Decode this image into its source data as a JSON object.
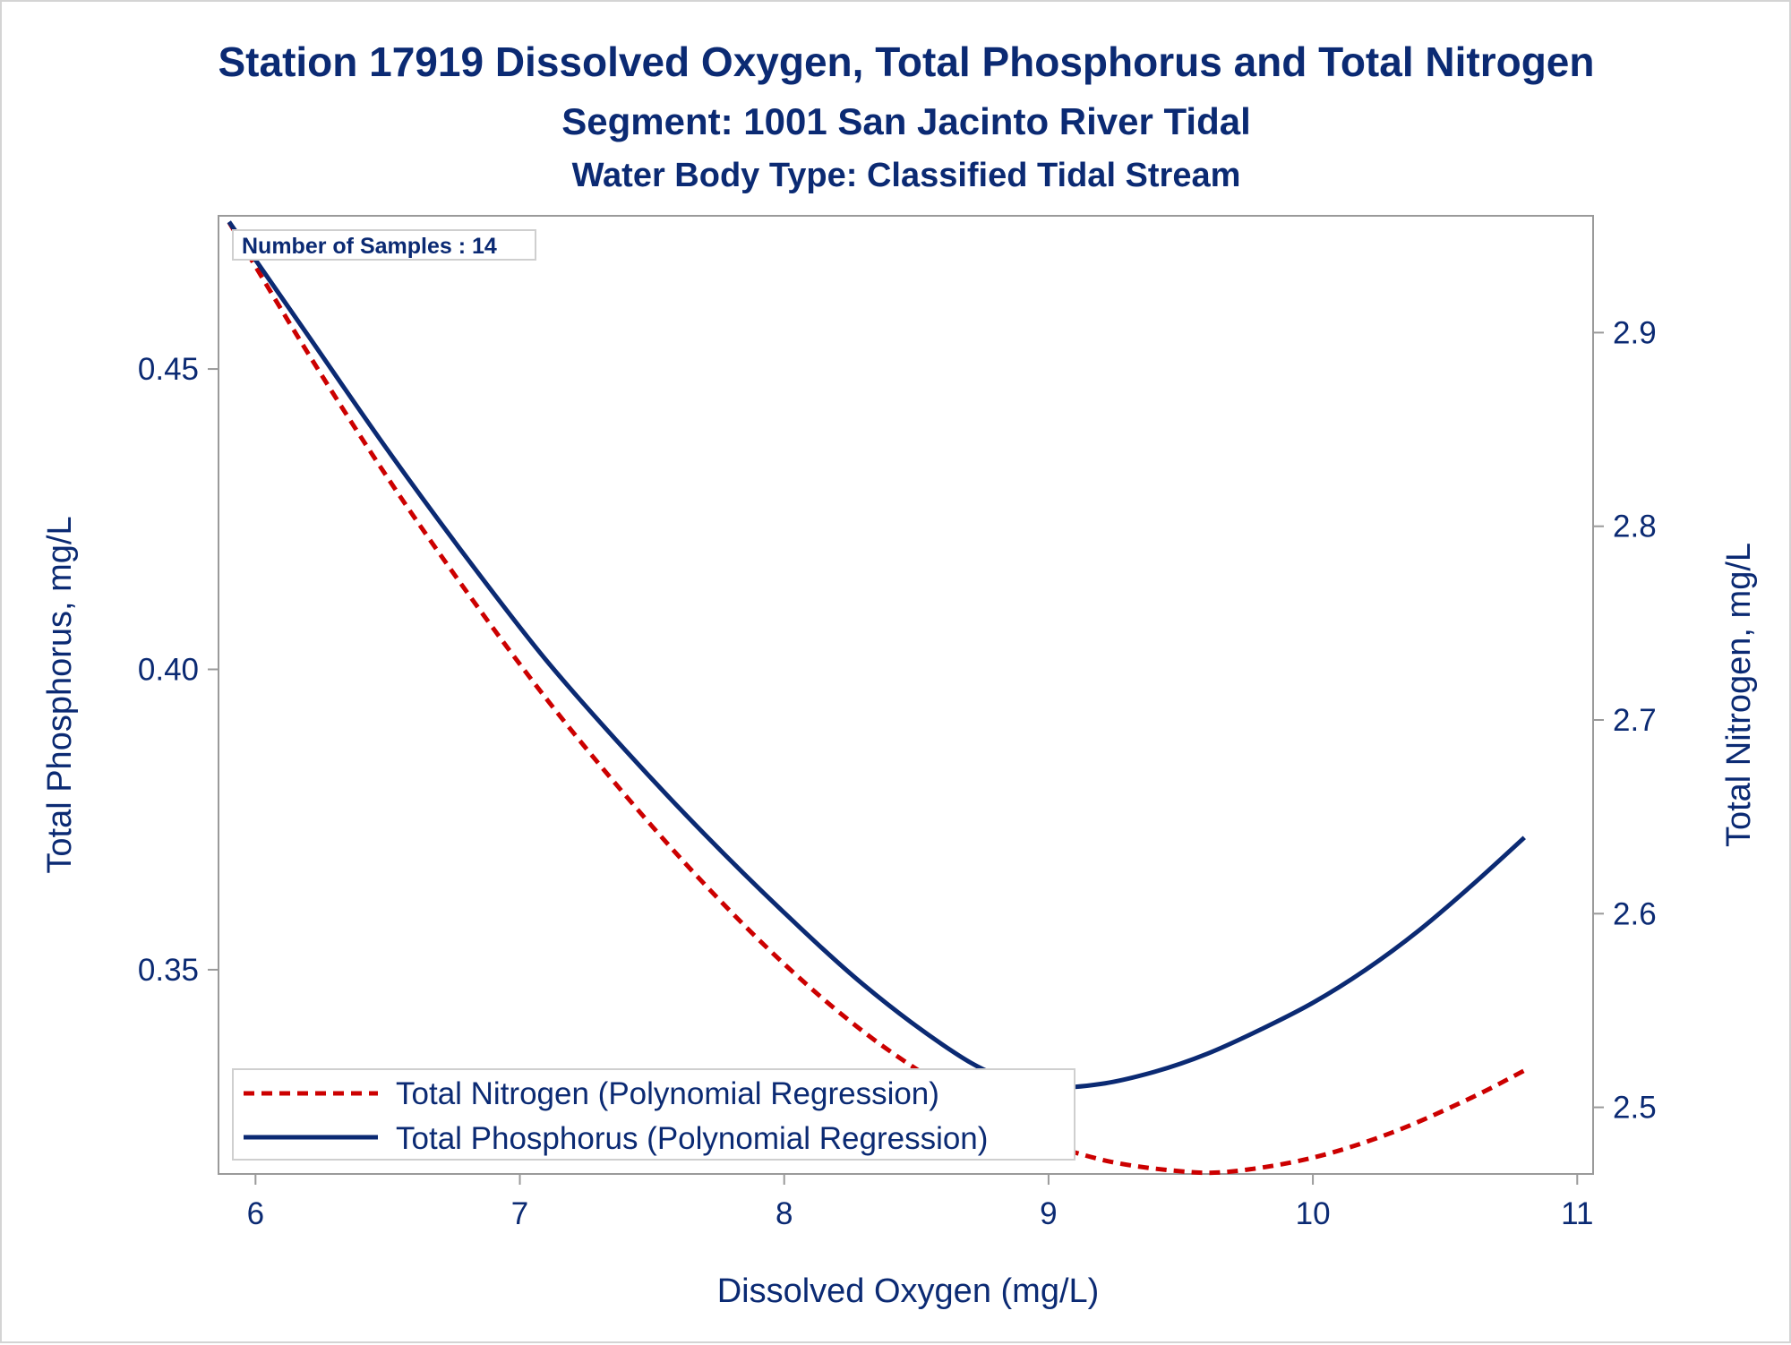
{
  "chart_data": {
    "type": "line",
    "title": "Station 17919  Dissolved Oxygen, Total Phosphorus and Total Nitrogen",
    "subtitle": "Segment: 1001  San Jacinto River Tidal",
    "subtitle2": "Water Body Type: Classified Tidal Stream",
    "xlabel": "Dissolved Oxygen (mg/L)",
    "ylabel_left": "Total Phosphorus, mg/L",
    "ylabel_right": "Total Nitrogen, mg/L",
    "annotation": "Number of Samples : 14",
    "xlim": [
      5.86,
      11.06
    ],
    "ylim_left": [
      0.316,
      0.4755
    ],
    "ylim_right": [
      2.4656,
      2.9603
    ],
    "x_ticks": [
      6,
      7,
      8,
      9,
      10,
      11
    ],
    "x_tick_labels": [
      "6",
      "7",
      "8",
      "9",
      "10",
      "11"
    ],
    "y_left_ticks": [
      0.35,
      0.4,
      0.45
    ],
    "y_left_tick_labels": [
      "0.35",
      "0.40",
      "0.45"
    ],
    "y_right_ticks": [
      2.5,
      2.6,
      2.7,
      2.8,
      2.9
    ],
    "y_right_tick_labels": [
      "2.5",
      "2.6",
      "2.7",
      "2.8",
      "2.9"
    ],
    "grid": false,
    "legend_position": "bottom-left",
    "series": [
      {
        "name": "Total Nitrogen (Polynomial Regression)",
        "axis": "right",
        "color": "#cc0000",
        "style": "dashed",
        "x": [
          5.9,
          6.2,
          6.5,
          6.8,
          7.1,
          7.4,
          7.7,
          8.0,
          8.3,
          8.6,
          8.9,
          9.2,
          9.5,
          9.7,
          10.0,
          10.3,
          10.6,
          10.8
        ],
        "y": [
          2.957,
          2.889,
          2.825,
          2.766,
          2.711,
          2.661,
          2.615,
          2.574,
          2.539,
          2.511,
          2.487,
          2.473,
          2.467,
          2.467,
          2.474,
          2.487,
          2.505,
          2.519
        ]
      },
      {
        "name": "Total Phosphorus (Polynomial Regression)",
        "axis": "left",
        "color": "#0b2a73",
        "style": "solid",
        "x": [
          5.9,
          6.2,
          6.5,
          6.8,
          7.1,
          7.4,
          7.7,
          8.0,
          8.3,
          8.6,
          8.8,
          9.0,
          9.2,
          9.4,
          9.6,
          9.8,
          10.0,
          10.2,
          10.4,
          10.6,
          10.8
        ],
        "y": [
          0.4745,
          0.4555,
          0.4365,
          0.4185,
          0.4015,
          0.3865,
          0.3725,
          0.3595,
          0.3475,
          0.3375,
          0.3325,
          0.3305,
          0.331,
          0.333,
          0.336,
          0.34,
          0.3445,
          0.35,
          0.3565,
          0.364,
          0.372
        ]
      }
    ]
  }
}
